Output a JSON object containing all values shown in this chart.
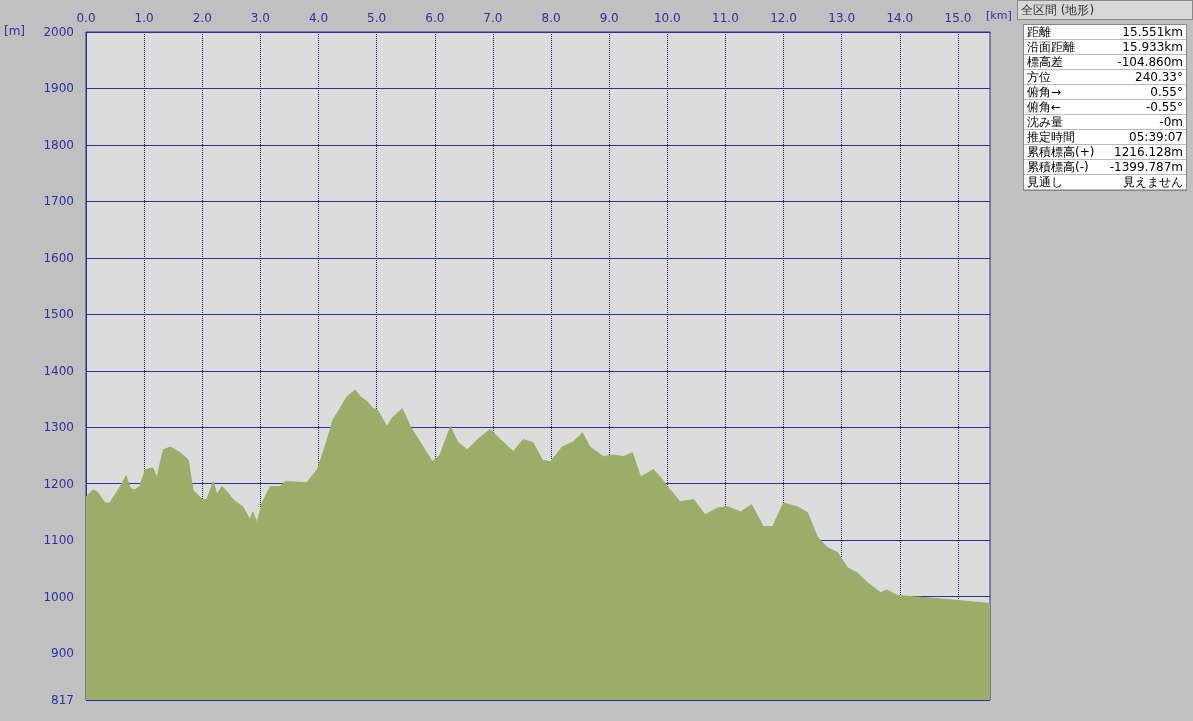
{
  "chart_data": {
    "type": "area",
    "title": "全区間 (地形)",
    "xlabel": "[km]",
    "ylabel": "[m]",
    "xlim": [
      0,
      15.551
    ],
    "xticks": [
      {
        "value": 0,
        "label": "0.0"
      },
      {
        "value": 1,
        "label": "1.0"
      },
      {
        "value": 2,
        "label": "2.0"
      },
      {
        "value": 3,
        "label": "3.0"
      },
      {
        "value": 4,
        "label": "4.0"
      },
      {
        "value": 5,
        "label": "5.0"
      },
      {
        "value": 6,
        "label": "6.0"
      },
      {
        "value": 7,
        "label": "7.0"
      },
      {
        "value": 8,
        "label": "8.0"
      },
      {
        "value": 9,
        "label": "9.0"
      },
      {
        "value": 10,
        "label": "10.0"
      },
      {
        "value": 11,
        "label": "11.0"
      },
      {
        "value": 12,
        "label": "12.0"
      },
      {
        "value": 13,
        "label": "13.0"
      },
      {
        "value": 14,
        "label": "14.0"
      },
      {
        "value": 15,
        "label": "15.0"
      }
    ],
    "ylim": [
      817,
      2000
    ],
    "yticks": [
      817,
      900,
      1000,
      1100,
      1200,
      1300,
      1400,
      1500,
      1600,
      1700,
      1800,
      1900,
      2000
    ],
    "grid": true,
    "marker": "none",
    "series": [
      {
        "color": "#9aae6a",
        "x": [
          0,
          0.12,
          0.19,
          0.33,
          0.41,
          0.59,
          0.69,
          0.76,
          0.84,
          0.93,
          1.02,
          1.15,
          1.22,
          1.33,
          1.45,
          1.62,
          1.76,
          1.84,
          2.0,
          2.08,
          2.19,
          2.25,
          2.34,
          2.44,
          2.53,
          2.7,
          2.82,
          2.87,
          2.94,
          3.03,
          3.17,
          3.34,
          3.43,
          3.8,
          3.98,
          4.15,
          4.25,
          4.49,
          4.63,
          4.72,
          4.84,
          4.94,
          5.01,
          5.18,
          5.27,
          5.44,
          5.58,
          5.75,
          5.96,
          6.09,
          6.27,
          6.39,
          6.56,
          6.73,
          6.95,
          7.13,
          7.35,
          7.52,
          7.69,
          7.85,
          7.99,
          8.19,
          8.38,
          8.54,
          8.67,
          8.9,
          9.07,
          9.24,
          9.4,
          9.54,
          9.76,
          9.88,
          10.0,
          10.22,
          10.45,
          10.65,
          10.86,
          11.05,
          11.26,
          11.45,
          11.65,
          11.81,
          12.0,
          12.24,
          12.41,
          12.58,
          12.75,
          12.93,
          13.1,
          13.27,
          13.44,
          13.67,
          13.77,
          13.96,
          14.23,
          14.82,
          15.551
        ],
        "values": [
          1177,
          1189,
          1186,
          1166,
          1166,
          1195,
          1214,
          1192,
          1189,
          1196,
          1225,
          1228,
          1211,
          1260,
          1265,
          1255,
          1242,
          1189,
          1172,
          1172,
          1204,
          1181,
          1195,
          1184,
          1172,
          1159,
          1136,
          1150,
          1131,
          1166,
          1195,
          1195,
          1204,
          1202,
          1225,
          1278,
          1313,
          1354,
          1366,
          1354,
          1345,
          1333,
          1331,
          1301,
          1317,
          1333,
          1301,
          1273,
          1239,
          1251,
          1301,
          1274,
          1260,
          1278,
          1296,
          1278,
          1257,
          1278,
          1273,
          1242,
          1239,
          1265,
          1274,
          1290,
          1265,
          1248,
          1251,
          1248,
          1255,
          1212,
          1225,
          1212,
          1195,
          1168,
          1172,
          1145,
          1157,
          1159,
          1150,
          1163,
          1124,
          1124,
          1166,
          1159,
          1149,
          1106,
          1087,
          1078,
          1051,
          1042,
          1025,
          1007,
          1012,
          1002,
          1000,
          995,
          988
        ]
      }
    ],
    "annotations": [
      "距離",
      "15.551km",
      "沿面距離",
      "15.933km",
      "標高差",
      "-104.860m",
      "方位",
      "240.33°",
      "俯角→",
      "0.55°",
      "俯角←",
      "-0.55°",
      "沈み量",
      "-0m",
      "推定時間",
      "05:39:07",
      "累積標高(+)",
      "1216.128m",
      "累積標高(-)",
      "-1399.787m",
      "見通し",
      "見えません"
    ]
  }
}
